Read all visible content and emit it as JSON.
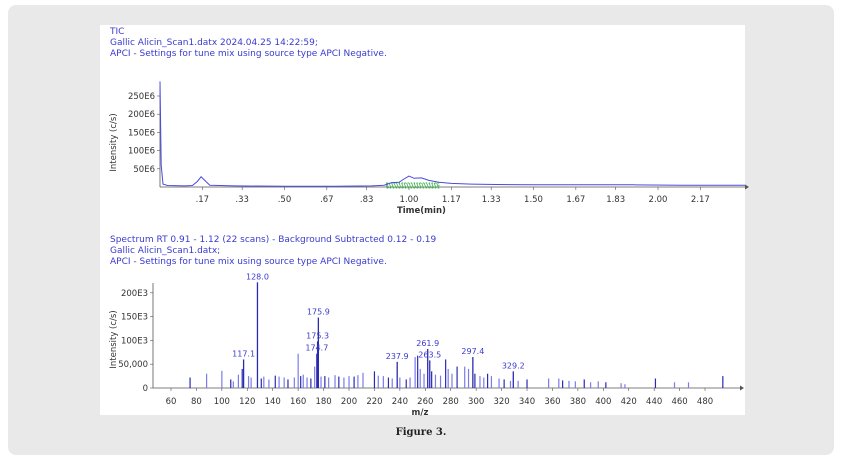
{
  "caption": "Figure 3.",
  "colors": {
    "trace": "#4a4ae0",
    "label": "#3a3ad0",
    "highlight": "#3cb44b",
    "panel": "#e9e9ea"
  },
  "chart_data": [
    {
      "type": "line",
      "header": [
        "TIC",
        "Gallic Alicin_Scan1.datx 2024.04.25 14:22:59;",
        "APCI - Settings for tune mix using source type APCI Negative."
      ],
      "xlabel": "Time(min)",
      "ylabel": "Intensity (c/s)",
      "xlim": [
        0,
        2.35
      ],
      "ylim": [
        0,
        300
      ],
      "y_unit": "E6",
      "x_ticks": [
        ".17",
        ".33",
        ".50",
        ".67",
        ".83",
        "1.00",
        "1.17",
        "1.33",
        "1.50",
        "1.67",
        "1.83",
        "2.00",
        "2.17"
      ],
      "x_tick_values": [
        0.17,
        0.33,
        0.5,
        0.67,
        0.83,
        1.0,
        1.17,
        1.33,
        1.5,
        1.67,
        1.83,
        2.0,
        2.17
      ],
      "y_ticks": [
        "50E6",
        "100E6",
        "150E6",
        "200E6",
        "250E6"
      ],
      "y_tick_values": [
        50,
        100,
        150,
        200,
        250
      ],
      "highlight_range": [
        0.91,
        1.12
      ],
      "series": [
        {
          "name": "TIC",
          "points": [
            [
              0.0,
              290
            ],
            [
              0.005,
              60
            ],
            [
              0.012,
              8
            ],
            [
              0.03,
              4
            ],
            [
              0.1,
              3
            ],
            [
              0.13,
              4
            ],
            [
              0.15,
              15
            ],
            [
              0.165,
              28
            ],
            [
              0.18,
              18
            ],
            [
              0.2,
              5
            ],
            [
              0.3,
              3
            ],
            [
              0.5,
              2
            ],
            [
              0.7,
              2
            ],
            [
              0.85,
              3
            ],
            [
              0.9,
              5
            ],
            [
              0.93,
              12
            ],
            [
              0.96,
              13
            ],
            [
              0.98,
              22
            ],
            [
              1.0,
              30
            ],
            [
              1.02,
              24
            ],
            [
              1.05,
              25
            ],
            [
              1.08,
              18
            ],
            [
              1.12,
              13
            ],
            [
              1.17,
              10
            ],
            [
              1.25,
              8
            ],
            [
              1.35,
              7
            ],
            [
              1.5,
              6
            ],
            [
              1.7,
              6
            ],
            [
              1.9,
              6
            ],
            [
              2.1,
              5
            ],
            [
              2.3,
              5
            ],
            [
              2.35,
              5
            ]
          ]
        }
      ]
    },
    {
      "type": "bar",
      "header": [
        "Spectrum RT 0.91 - 1.12 (22 scans) - Background Subtracted 0.12 - 0.19",
        "Gallic Alicin_Scan1.datx;",
        "APCI - Settings for tune mix using source type APCI Negative."
      ],
      "xlabel": "m/z",
      "ylabel": "Intensity (c/s)",
      "xlim": [
        50,
        500
      ],
      "ylim": [
        0,
        230000
      ],
      "x_ticks": [
        "60",
        "80",
        "100",
        "120",
        "140",
        "160",
        "180",
        "200",
        "220",
        "240",
        "260",
        "280",
        "300",
        "320",
        "340",
        "360",
        "380",
        "400",
        "420",
        "440",
        "460",
        "480"
      ],
      "y_ticks": [
        "0",
        "50,000",
        "100E3",
        "150E3",
        "200E3"
      ],
      "y_tick_values": [
        0,
        50000,
        100000,
        150000,
        200000
      ],
      "labeled_peaks": [
        {
          "mz": 128.0,
          "label": "128.0",
          "intensity": 222000
        },
        {
          "mz": 175.9,
          "label": "175.9",
          "intensity": 148000
        },
        {
          "mz": 175.3,
          "label": "175.3",
          "intensity": 98000
        },
        {
          "mz": 174.7,
          "label": "174.7",
          "intensity": 72000
        },
        {
          "mz": 117.1,
          "label": "117.1",
          "intensity": 60000
        },
        {
          "mz": 237.9,
          "label": "237.9",
          "intensity": 55000
        },
        {
          "mz": 261.9,
          "label": "261.9",
          "intensity": 82000
        },
        {
          "mz": 263.5,
          "label": "263.5",
          "intensity": 58000
        },
        {
          "mz": 297.4,
          "label": "297.4",
          "intensity": 65000
        },
        {
          "mz": 329.2,
          "label": "329.2",
          "intensity": 35000
        }
      ],
      "other_peaks": [
        [
          75,
          22000
        ],
        [
          88,
          30000
        ],
        [
          100,
          36000
        ],
        [
          107,
          18000
        ],
        [
          109,
          14000
        ],
        [
          113,
          28000
        ],
        [
          116,
          40000
        ],
        [
          121,
          25000
        ],
        [
          123,
          22000
        ],
        [
          131,
          20000
        ],
        [
          133,
          24000
        ],
        [
          137,
          18000
        ],
        [
          142,
          26000
        ],
        [
          145,
          24000
        ],
        [
          149,
          22000
        ],
        [
          152,
          18000
        ],
        [
          157,
          22000
        ],
        [
          160,
          72000
        ],
        [
          162,
          25000
        ],
        [
          164,
          28000
        ],
        [
          167,
          22000
        ],
        [
          170,
          20000
        ],
        [
          173,
          45000
        ],
        [
          178,
          24000
        ],
        [
          181,
          25000
        ],
        [
          184,
          22000
        ],
        [
          189,
          27000
        ],
        [
          192,
          24000
        ],
        [
          196,
          22000
        ],
        [
          200,
          25000
        ],
        [
          204,
          24000
        ],
        [
          207,
          27000
        ],
        [
          211,
          32000
        ],
        [
          220,
          35000
        ],
        [
          223,
          26000
        ],
        [
          227,
          25000
        ],
        [
          231,
          22000
        ],
        [
          234,
          20000
        ],
        [
          240,
          22000
        ],
        [
          245,
          18000
        ],
        [
          248,
          22000
        ],
        [
          252,
          65000
        ],
        [
          254,
          68000
        ],
        [
          256,
          40000
        ],
        [
          259,
          30000
        ],
        [
          265,
          35000
        ],
        [
          268,
          28000
        ],
        [
          272,
          26000
        ],
        [
          276,
          60000
        ],
        [
          278,
          40000
        ],
        [
          281,
          30000
        ],
        [
          285,
          45000
        ],
        [
          291,
          45000
        ],
        [
          294,
          40000
        ],
        [
          299,
          30000
        ],
        [
          303,
          25000
        ],
        [
          306,
          22000
        ],
        [
          309,
          30000
        ],
        [
          312,
          25000
        ],
        [
          318,
          20000
        ],
        [
          322,
          18000
        ],
        [
          327,
          15000
        ],
        [
          333,
          15000
        ],
        [
          340,
          18000
        ],
        [
          357,
          20000
        ],
        [
          365,
          20000
        ],
        [
          368,
          16000
        ],
        [
          373,
          15000
        ],
        [
          378,
          14000
        ],
        [
          385,
          18000
        ],
        [
          390,
          12000
        ],
        [
          396,
          14000
        ],
        [
          402,
          12000
        ],
        [
          414,
          10000
        ],
        [
          417,
          8000
        ],
        [
          441,
          20000
        ],
        [
          456,
          12000
        ],
        [
          467,
          12000
        ],
        [
          494,
          25000
        ]
      ]
    }
  ]
}
